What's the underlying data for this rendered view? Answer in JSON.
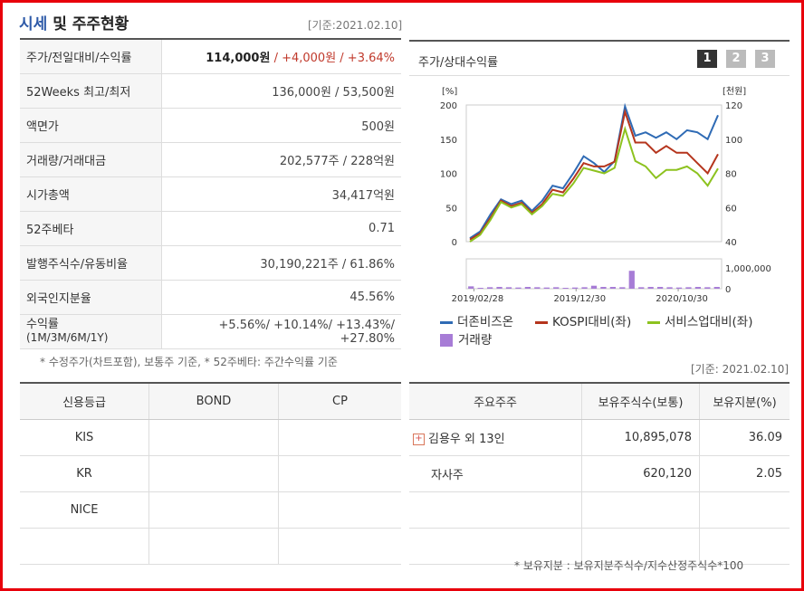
{
  "header": {
    "title_part1": "시세",
    "title_part2": " 및 주주현황",
    "base_date": "[기준:2021.02.10]"
  },
  "price_table": [
    {
      "key": "주가/전일대비/수익률",
      "value": "114,000원",
      "change": " / +4,000원 / +3.64%"
    },
    {
      "key": "52Weeks 최고/최저",
      "value": "136,000원 / 53,500원"
    },
    {
      "key": "액면가",
      "value": "500원"
    },
    {
      "key": "거래량/거래대금",
      "value": "202,577주 / 228억원"
    },
    {
      "key": "시가총액",
      "value": "34,417억원"
    },
    {
      "key": "52주베타",
      "value": "0.71"
    },
    {
      "key": "발행주식수/유동비율",
      "value": "30,190,221주 / 61.86%"
    },
    {
      "key": "외국인지분율",
      "value": "45.56%"
    },
    {
      "key": "수익률",
      "key_sub": "(1M/3M/6M/1Y)",
      "value": "+5.56%/ +10.14%/ +13.43%/ +27.80%"
    }
  ],
  "price_footnote": "* 수정주가(차트포함), 보통주 기준, * 52주베타: 주간수익률 기준",
  "chart_panel": {
    "title": "주가/상대수익률",
    "buttons": [
      "1",
      "2",
      "3"
    ]
  },
  "chart_data": {
    "type": "line",
    "left_axis_label": "[%]",
    "right_axis_label": "[천원]",
    "left_ticks": [
      "200",
      "150",
      "100",
      "50",
      "0"
    ],
    "right_ticks": [
      "120",
      "100",
      "80",
      "60",
      "40"
    ],
    "volume_ticks": [
      "1,000,000",
      "0"
    ],
    "x_ticks": [
      "2019/02/28",
      "2019/12/30",
      "2020/10/30"
    ],
    "ylim": [
      0,
      200
    ],
    "series": [
      {
        "name": "더존비즈온",
        "color": "#2f6bb5",
        "values": [
          5,
          15,
          40,
          62,
          55,
          60,
          45,
          60,
          82,
          78,
          100,
          125,
          115,
          102,
          118,
          198,
          155,
          160,
          152,
          160,
          150,
          163,
          160,
          150,
          185
        ]
      },
      {
        "name": "KOSPI대비(좌)",
        "color": "#b5351d",
        "values": [
          3,
          12,
          35,
          60,
          52,
          57,
          42,
          55,
          76,
          72,
          92,
          115,
          110,
          110,
          117,
          190,
          145,
          145,
          130,
          140,
          130,
          130,
          115,
          100,
          128
        ]
      },
      {
        "name": "서비스업대비(좌)",
        "color": "#8dc21f",
        "values": [
          0,
          10,
          32,
          58,
          50,
          55,
          40,
          52,
          70,
          67,
          85,
          108,
          104,
          100,
          108,
          165,
          118,
          110,
          93,
          105,
          105,
          110,
          100,
          82,
          107
        ]
      }
    ],
    "volume": {
      "name": "거래량",
      "color": "#a77cd6",
      "values": [
        0.08,
        0.03,
        0.05,
        0.06,
        0.05,
        0.04,
        0.06,
        0.05,
        0.04,
        0.05,
        0.03,
        0.04,
        0.05,
        0.1,
        0.06,
        0.06,
        0.05,
        0.6,
        0.05,
        0.06,
        0.06,
        0.05,
        0.04,
        0.05,
        0.06,
        0.05,
        0.06
      ]
    }
  },
  "base_date2": "[기준: 2021.02.10]",
  "credit_table": {
    "headers": [
      "신용등급",
      "BOND",
      "CP"
    ],
    "rows": [
      [
        "KIS",
        "",
        ""
      ],
      [
        "KR",
        "",
        ""
      ],
      [
        "NICE",
        "",
        ""
      ],
      [
        "",
        "",
        ""
      ]
    ]
  },
  "shareholders": {
    "headers": [
      "주요주주",
      "보유주식수(보통)",
      "보유지분(%)"
    ],
    "rows": [
      {
        "name": "김용우 외 13인",
        "shares": "10,895,078",
        "pct": "36.09",
        "expand": "+"
      },
      {
        "name": "자사주",
        "shares": "620,120",
        "pct": "2.05"
      }
    ]
  },
  "share_footnote": "* 보유지분 : 보유지분주식수/지수산정주식수*100"
}
